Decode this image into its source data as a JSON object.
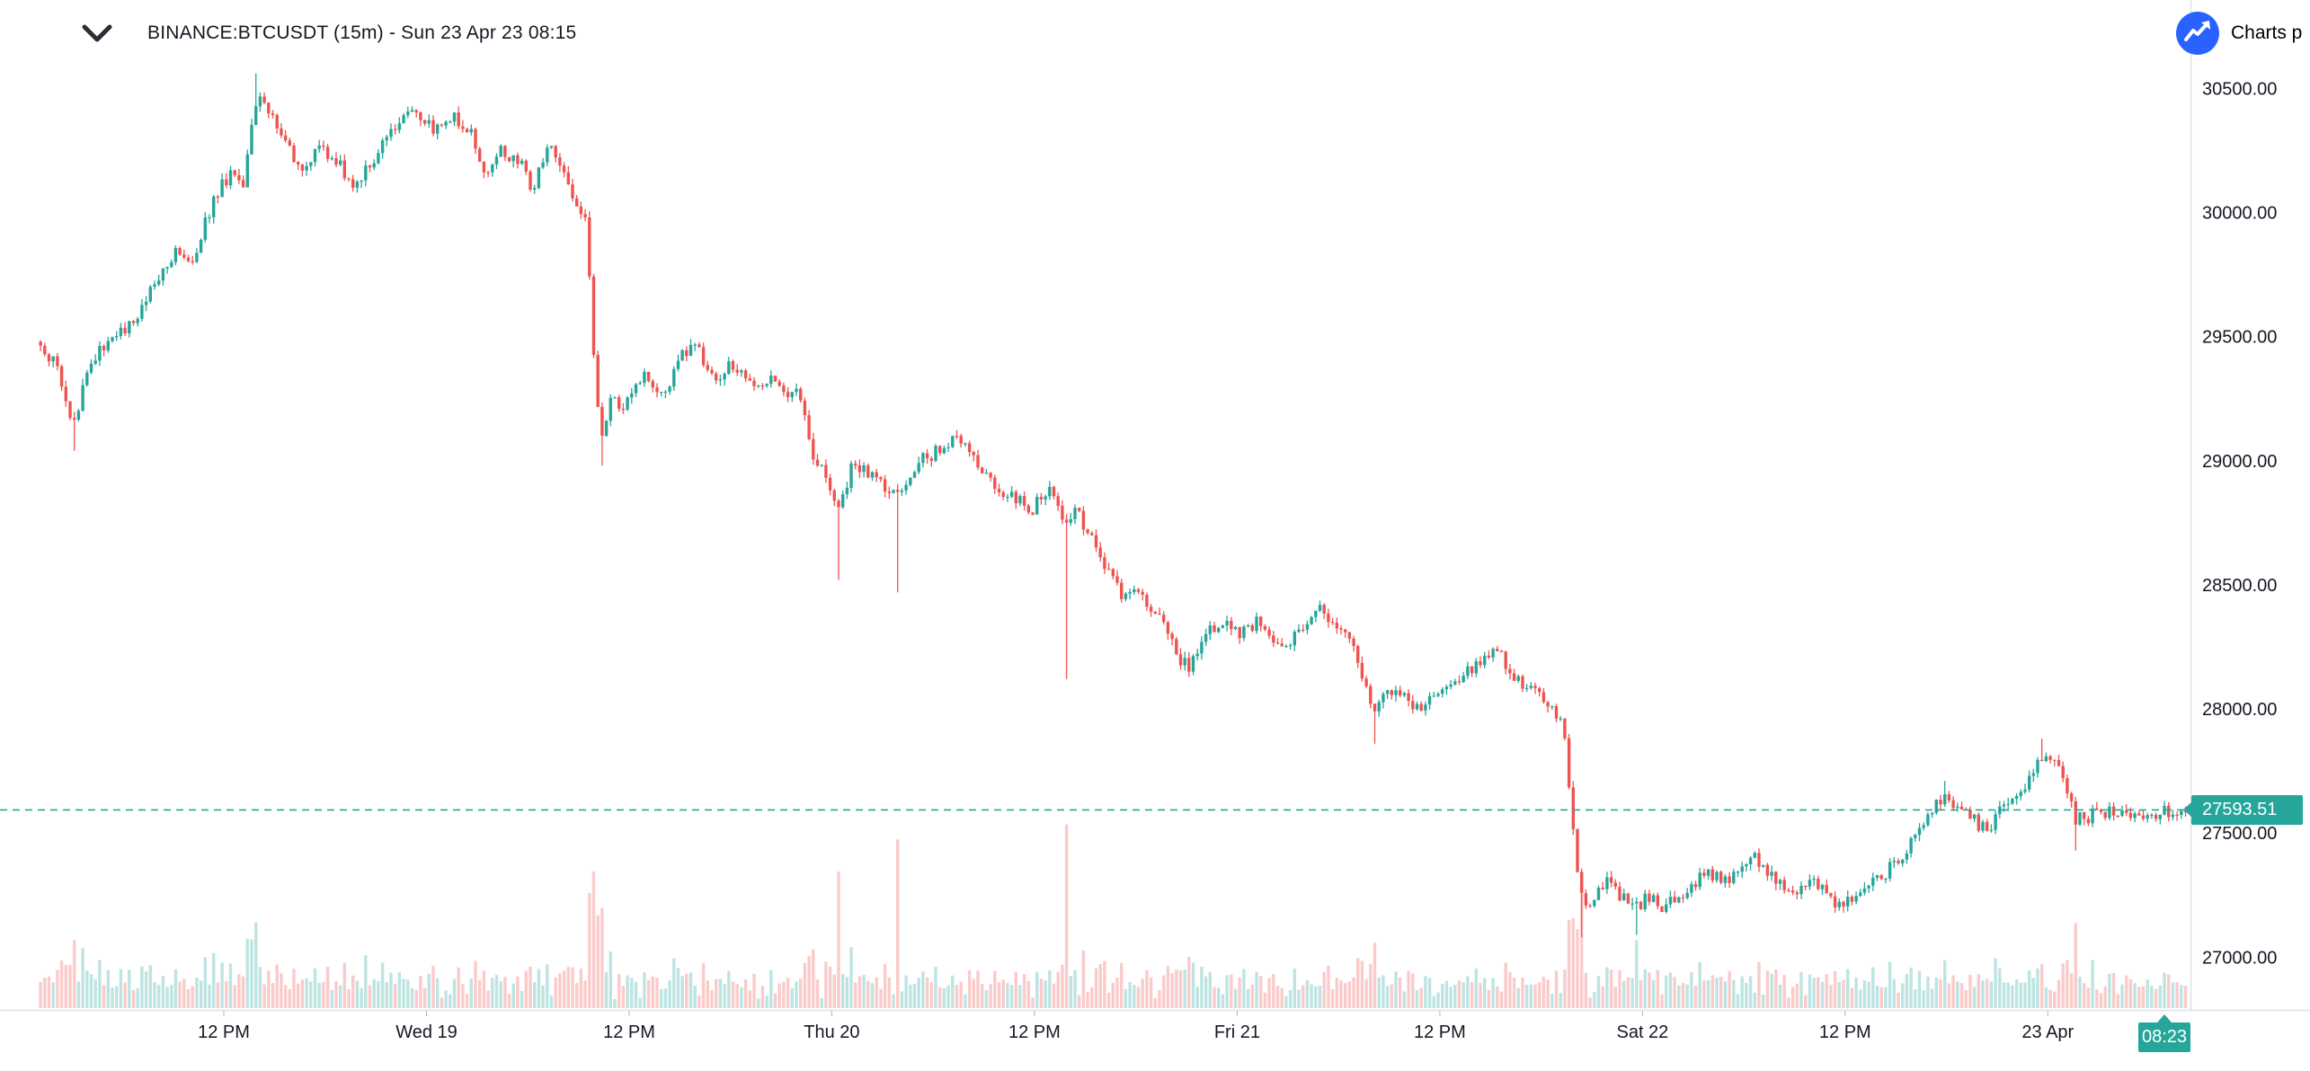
{
  "header": {
    "title": "BINANCE:BTCUSDT (15m) - Sun 23 Apr 23 08:15"
  },
  "branding": {
    "label": "Charts p",
    "logo_color": "#2962FF"
  },
  "colors": {
    "up": "#26a69a",
    "down": "#ef5350",
    "up_volume": "rgba(38,166,154,0.30)",
    "down_volume": "rgba(239,83,80,0.30)",
    "axis_text": "#131722",
    "axis_line": "#dde1e7",
    "tick_mark": "#b2b5be",
    "price_line": "#26a69a",
    "badge_bg": "#26a69a",
    "badge_text": "#ffffff"
  },
  "price_axis": {
    "ticks": [
      {
        "value": 30500,
        "label": "30500.00"
      },
      {
        "value": 30000,
        "label": "30000.00"
      },
      {
        "value": 29500,
        "label": "29500.00"
      },
      {
        "value": 29000,
        "label": "29000.00"
      },
      {
        "value": 28500,
        "label": "28500.00"
      },
      {
        "value": 28000,
        "label": "28000.00"
      },
      {
        "value": 27500,
        "label": "27500.00"
      },
      {
        "value": 27000,
        "label": "27000.00"
      }
    ]
  },
  "time_axis": {
    "labels": [
      {
        "t": 12,
        "label": "12 PM"
      },
      {
        "t": 24,
        "label": "Wed 19"
      },
      {
        "t": 36,
        "label": "12 PM"
      },
      {
        "t": 48,
        "label": "Thu 20"
      },
      {
        "t": 60,
        "label": "12 PM"
      },
      {
        "t": 72,
        "label": "Fri 21"
      },
      {
        "t": 84,
        "label": "12 PM"
      },
      {
        "t": 96,
        "label": "Sat 22"
      },
      {
        "t": 108,
        "label": "12 PM"
      },
      {
        "t": 120,
        "label": "23 Apr"
      }
    ]
  },
  "price_badge": {
    "label": "27593.51"
  },
  "time_badge": {
    "label": "08:23"
  },
  "chart_data": {
    "type": "candlestick",
    "symbol": "BINANCE:BTCUSDT",
    "interval": "15m",
    "title": "BINANCE:BTCUSDT (15m) - Sun 23 Apr 23 08:15",
    "last_price": 27593.51,
    "last_time_label": "08:23",
    "ylim": [
      26900,
      30650
    ],
    "step_hours": 0.25,
    "t_start": 0.9,
    "t_end": 128.3,
    "anchors": [
      [
        0.9,
        29480
      ],
      [
        2.1,
        29380
      ],
      [
        3.1,
        29130
      ],
      [
        4.0,
        29400
      ],
      [
        5.3,
        29480
      ],
      [
        6.6,
        29560
      ],
      [
        7.9,
        29720
      ],
      [
        9.2,
        29850
      ],
      [
        10.1,
        29800
      ],
      [
        11.4,
        30050
      ],
      [
        12.3,
        30150
      ],
      [
        13.1,
        30100
      ],
      [
        14.0,
        30480
      ],
      [
        14.9,
        30380
      ],
      [
        15.8,
        30280
      ],
      [
        16.6,
        30160
      ],
      [
        17.5,
        30250
      ],
      [
        18.6,
        30220
      ],
      [
        19.7,
        30090
      ],
      [
        20.7,
        30200
      ],
      [
        21.9,
        30330
      ],
      [
        23.2,
        30400
      ],
      [
        24.5,
        30340
      ],
      [
        25.8,
        30380
      ],
      [
        26.8,
        30300
      ],
      [
        27.5,
        30160
      ],
      [
        28.4,
        30250
      ],
      [
        29.5,
        30200
      ],
      [
        30.3,
        30100
      ],
      [
        31.2,
        30290
      ],
      [
        31.9,
        30200
      ],
      [
        32.8,
        30050
      ],
      [
        33.5,
        29940
      ],
      [
        33.9,
        29420
      ],
      [
        34.3,
        29060
      ],
      [
        35.0,
        29280
      ],
      [
        35.6,
        29180
      ],
      [
        36.3,
        29300
      ],
      [
        37.1,
        29350
      ],
      [
        37.8,
        29250
      ],
      [
        38.4,
        29300
      ],
      [
        39.1,
        29420
      ],
      [
        39.8,
        29490
      ],
      [
        40.5,
        29380
      ],
      [
        41.3,
        29300
      ],
      [
        41.9,
        29380
      ],
      [
        42.8,
        29350
      ],
      [
        43.7,
        29300
      ],
      [
        44.6,
        29350
      ],
      [
        45.4,
        29280
      ],
      [
        46.3,
        29250
      ],
      [
        46.9,
        29010
      ],
      [
        47.6,
        28950
      ],
      [
        48.5,
        28810
      ],
      [
        49.2,
        29000
      ],
      [
        50.0,
        28950
      ],
      [
        50.9,
        28900
      ],
      [
        51.8,
        28860
      ],
      [
        52.7,
        28950
      ],
      [
        53.5,
        29010
      ],
      [
        54.6,
        29050
      ],
      [
        55.6,
        29100
      ],
      [
        56.8,
        28950
      ],
      [
        57.6,
        28900
      ],
      [
        58.8,
        28850
      ],
      [
        59.8,
        28800
      ],
      [
        60.9,
        28900
      ],
      [
        61.7,
        28760
      ],
      [
        62.4,
        28800
      ],
      [
        63.3,
        28700
      ],
      [
        64.4,
        28550
      ],
      [
        65.2,
        28460
      ],
      [
        66.1,
        28500
      ],
      [
        67.0,
        28400
      ],
      [
        67.8,
        28350
      ],
      [
        68.5,
        28210
      ],
      [
        69.2,
        28160
      ],
      [
        70.1,
        28300
      ],
      [
        71.0,
        28350
      ],
      [
        72.0,
        28300
      ],
      [
        73.1,
        28350
      ],
      [
        73.9,
        28300
      ],
      [
        74.8,
        28260
      ],
      [
        75.7,
        28300
      ],
      [
        76.8,
        28400
      ],
      [
        77.7,
        28350
      ],
      [
        78.6,
        28300
      ],
      [
        79.4,
        28110
      ],
      [
        80.1,
        28010
      ],
      [
        80.8,
        28100
      ],
      [
        81.6,
        28050
      ],
      [
        82.7,
        28010
      ],
      [
        83.8,
        28050
      ],
      [
        84.7,
        28100
      ],
      [
        85.6,
        28150
      ],
      [
        86.4,
        28200
      ],
      [
        87.3,
        28250
      ],
      [
        88.2,
        28150
      ],
      [
        89.0,
        28100
      ],
      [
        89.9,
        28050
      ],
      [
        90.8,
        28000
      ],
      [
        91.4,
        27900
      ],
      [
        91.9,
        27500
      ],
      [
        92.3,
        27260
      ],
      [
        93.0,
        27210
      ],
      [
        93.8,
        27300
      ],
      [
        94.7,
        27250
      ],
      [
        95.6,
        27200
      ],
      [
        96.5,
        27250
      ],
      [
        97.3,
        27200
      ],
      [
        98.2,
        27250
      ],
      [
        99.1,
        27300
      ],
      [
        99.9,
        27340
      ],
      [
        100.8,
        27300
      ],
      [
        101.7,
        27340
      ],
      [
        102.6,
        27400
      ],
      [
        103.4,
        27350
      ],
      [
        104.3,
        27300
      ],
      [
        105.2,
        27250
      ],
      [
        106.0,
        27300
      ],
      [
        106.9,
        27250
      ],
      [
        107.8,
        27210
      ],
      [
        108.7,
        27250
      ],
      [
        109.5,
        27300
      ],
      [
        110.4,
        27340
      ],
      [
        111.3,
        27400
      ],
      [
        112.2,
        27500
      ],
      [
        113.0,
        27590
      ],
      [
        113.9,
        27650
      ],
      [
        114.8,
        27600
      ],
      [
        115.6,
        27550
      ],
      [
        116.5,
        27510
      ],
      [
        117.2,
        27590
      ],
      [
        117.9,
        27650
      ],
      [
        118.7,
        27700
      ],
      [
        119.6,
        27800
      ],
      [
        120.3,
        27820
      ],
      [
        120.9,
        27700
      ],
      [
        121.6,
        27560
      ],
      [
        122.3,
        27560
      ],
      [
        123.1,
        27600
      ],
      [
        123.9,
        27570
      ],
      [
        124.8,
        27580
      ],
      [
        125.7,
        27560
      ],
      [
        126.3,
        27580
      ],
      [
        128.3,
        27593
      ]
    ],
    "wicks": [
      [
        3.1,
        29040
      ],
      [
        14.0,
        30560
      ],
      [
        34.3,
        28980
      ],
      [
        48.5,
        28520
      ],
      [
        51.8,
        28470
      ],
      [
        61.8,
        28120
      ],
      [
        80.1,
        27860
      ],
      [
        92.3,
        27080
      ],
      [
        95.6,
        27090
      ],
      [
        113.9,
        27710
      ],
      [
        119.6,
        27880
      ],
      [
        121.6,
        27430
      ]
    ]
  }
}
